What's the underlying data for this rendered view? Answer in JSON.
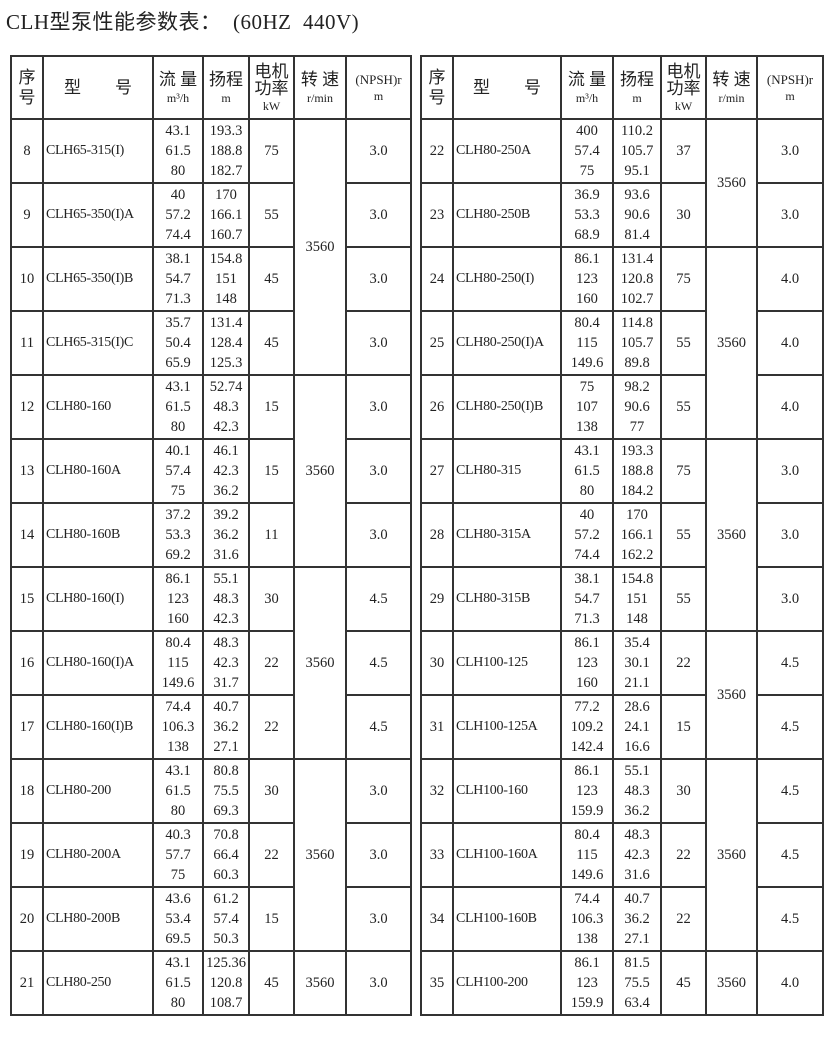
{
  "title": "CLH型泵性能参数表：  (60HZ  440V)",
  "headers": {
    "no": "序号",
    "model": "型　　号",
    "flow": "流 量",
    "flow_unit": "m³/h",
    "head": "扬程",
    "head_unit": "m",
    "power": "电机功率",
    "power_unit": "kW",
    "speed": "转 速",
    "speed_unit": "r/min",
    "npsh": "(NPSH)r",
    "npsh_unit": "m"
  },
  "tables": [
    {
      "rows": [
        {
          "no": "8",
          "model": "CLH65-315(I)",
          "flow": [
            "43.1",
            "61.5",
            "80"
          ],
          "head": [
            "193.3",
            "188.8",
            "182.7"
          ],
          "power": "75",
          "npsh": "3.0"
        },
        {
          "no": "9",
          "model": "CLH65-350(I)A",
          "flow": [
            "40",
            "57.2",
            "74.4"
          ],
          "head": [
            "170",
            "166.1",
            "160.7"
          ],
          "power": "55",
          "npsh": "3.0"
        },
        {
          "no": "10",
          "model": "CLH65-350(I)B",
          "flow": [
            "38.1",
            "54.7",
            "71.3"
          ],
          "head": [
            "154.8",
            "151",
            "148"
          ],
          "power": "45",
          "npsh": "3.0"
        },
        {
          "no": "11",
          "model": "CLH65-315(I)C",
          "flow": [
            "35.7",
            "50.4",
            "65.9"
          ],
          "head": [
            "131.4",
            "128.4",
            "125.3"
          ],
          "power": "45",
          "npsh": "3.0"
        },
        {
          "no": "12",
          "model": "CLH80-160",
          "flow": [
            "43.1",
            "61.5",
            "80"
          ],
          "head": [
            "52.74",
            "48.3",
            "42.3"
          ],
          "power": "15",
          "npsh": "3.0"
        },
        {
          "no": "13",
          "model": "CLH80-160A",
          "flow": [
            "40.1",
            "57.4",
            "75"
          ],
          "head": [
            "46.1",
            "42.3",
            "36.2"
          ],
          "power": "15",
          "npsh": "3.0"
        },
        {
          "no": "14",
          "model": "CLH80-160B",
          "flow": [
            "37.2",
            "53.3",
            "69.2"
          ],
          "head": [
            "39.2",
            "36.2",
            "31.6"
          ],
          "power": "11",
          "npsh": "3.0"
        },
        {
          "no": "15",
          "model": "CLH80-160(I)",
          "flow": [
            "86.1",
            "123",
            "160"
          ],
          "head": [
            "55.1",
            "48.3",
            "42.3"
          ],
          "power": "30",
          "npsh": "4.5"
        },
        {
          "no": "16",
          "model": "CLH80-160(I)A",
          "flow": [
            "80.4",
            "115",
            "149.6"
          ],
          "head": [
            "48.3",
            "42.3",
            "31.7"
          ],
          "power": "22",
          "npsh": "4.5"
        },
        {
          "no": "17",
          "model": "CLH80-160(I)B",
          "flow": [
            "74.4",
            "106.3",
            "138"
          ],
          "head": [
            "40.7",
            "36.2",
            "27.1"
          ],
          "power": "22",
          "npsh": "4.5"
        },
        {
          "no": "18",
          "model": "CLH80-200",
          "flow": [
            "43.1",
            "61.5",
            "80"
          ],
          "head": [
            "80.8",
            "75.5",
            "69.3"
          ],
          "power": "30",
          "npsh": "3.0"
        },
        {
          "no": "19",
          "model": "CLH80-200A",
          "flow": [
            "40.3",
            "57.7",
            "75"
          ],
          "head": [
            "70.8",
            "66.4",
            "60.3"
          ],
          "power": "22",
          "npsh": "3.0"
        },
        {
          "no": "20",
          "model": "CLH80-200B",
          "flow": [
            "43.6",
            "53.4",
            "69.5"
          ],
          "head": [
            "61.2",
            "57.4",
            "50.3"
          ],
          "power": "15",
          "npsh": "3.0"
        },
        {
          "no": "21",
          "model": "CLH80-250",
          "flow": [
            "43.1",
            "61.5",
            "80"
          ],
          "head": [
            "125.36",
            "120.8",
            "108.7"
          ],
          "power": "45",
          "npsh": "3.0"
        }
      ],
      "speed_groups": [
        {
          "value": "3560",
          "rows": 4
        },
        {
          "value": "3560",
          "rows": 3
        },
        {
          "value": "3560",
          "rows": 3
        },
        {
          "value": "3560",
          "rows": 3
        },
        {
          "value": "3560",
          "rows": 1
        }
      ]
    },
    {
      "rows": [
        {
          "no": "22",
          "model": "CLH80-250A",
          "flow": [
            "400",
            "57.4",
            "75"
          ],
          "head": [
            "110.2",
            "105.7",
            "95.1"
          ],
          "power": "37",
          "npsh": "3.0"
        },
        {
          "no": "23",
          "model": "CLH80-250B",
          "flow": [
            "36.9",
            "53.3",
            "68.9"
          ],
          "head": [
            "93.6",
            "90.6",
            "81.4"
          ],
          "power": "30",
          "npsh": "3.0"
        },
        {
          "no": "24",
          "model": "CLH80-250(I)",
          "flow": [
            "86.1",
            "123",
            "160"
          ],
          "head": [
            "131.4",
            "120.8",
            "102.7"
          ],
          "power": "75",
          "npsh": "4.0"
        },
        {
          "no": "25",
          "model": "CLH80-250(I)A",
          "flow": [
            "80.4",
            "115",
            "149.6"
          ],
          "head": [
            "114.8",
            "105.7",
            "89.8"
          ],
          "power": "55",
          "npsh": "4.0"
        },
        {
          "no": "26",
          "model": "CLH80-250(I)B",
          "flow": [
            "75",
            "107",
            "138"
          ],
          "head": [
            "98.2",
            "90.6",
            "77"
          ],
          "power": "55",
          "npsh": "4.0"
        },
        {
          "no": "27",
          "model": "CLH80-315",
          "flow": [
            "43.1",
            "61.5",
            "80"
          ],
          "head": [
            "193.3",
            "188.8",
            "184.2"
          ],
          "power": "75",
          "npsh": "3.0"
        },
        {
          "no": "28",
          "model": "CLH80-315A",
          "flow": [
            "40",
            "57.2",
            "74.4"
          ],
          "head": [
            "170",
            "166.1",
            "162.2"
          ],
          "power": "55",
          "npsh": "3.0"
        },
        {
          "no": "29",
          "model": "CLH80-315B",
          "flow": [
            "38.1",
            "54.7",
            "71.3"
          ],
          "head": [
            "154.8",
            "151",
            "148"
          ],
          "power": "55",
          "npsh": "3.0"
        },
        {
          "no": "30",
          "model": "CLH100-125",
          "flow": [
            "86.1",
            "123",
            "160"
          ],
          "head": [
            "35.4",
            "30.1",
            "21.1"
          ],
          "power": "22",
          "npsh": "4.5"
        },
        {
          "no": "31",
          "model": "CLH100-125A",
          "flow": [
            "77.2",
            "109.2",
            "142.4"
          ],
          "head": [
            "28.6",
            "24.1",
            "16.6"
          ],
          "power": "15",
          "npsh": "4.5"
        },
        {
          "no": "32",
          "model": "CLH100-160",
          "flow": [
            "86.1",
            "123",
            "159.9"
          ],
          "head": [
            "55.1",
            "48.3",
            "36.2"
          ],
          "power": "30",
          "npsh": "4.5"
        },
        {
          "no": "33",
          "model": "CLH100-160A",
          "flow": [
            "80.4",
            "115",
            "149.6"
          ],
          "head": [
            "48.3",
            "42.3",
            "31.6"
          ],
          "power": "22",
          "npsh": "4.5"
        },
        {
          "no": "34",
          "model": "CLH100-160B",
          "flow": [
            "74.4",
            "106.3",
            "138"
          ],
          "head": [
            "40.7",
            "36.2",
            "27.1"
          ],
          "power": "22",
          "npsh": "4.5"
        },
        {
          "no": "35",
          "model": "CLH100-200",
          "flow": [
            "86.1",
            "123",
            "159.9"
          ],
          "head": [
            "81.5",
            "75.5",
            "63.4"
          ],
          "power": "45",
          "npsh": "4.0"
        }
      ],
      "speed_groups": [
        {
          "value": "3560",
          "rows": 2
        },
        {
          "value": "3560",
          "rows": 3
        },
        {
          "value": "3560",
          "rows": 3
        },
        {
          "value": "3560",
          "rows": 2
        },
        {
          "value": "3560",
          "rows": 3
        },
        {
          "value": "3560",
          "rows": 1
        }
      ]
    }
  ]
}
